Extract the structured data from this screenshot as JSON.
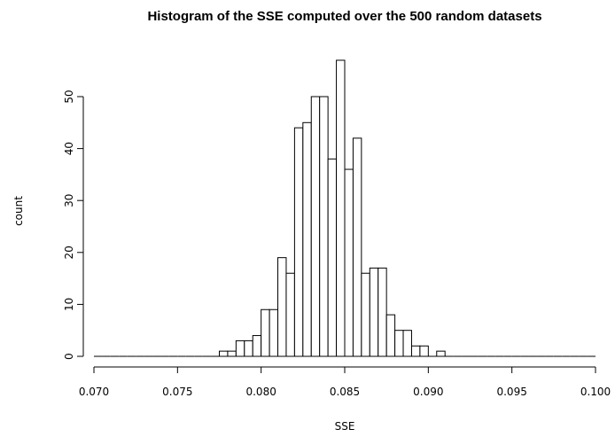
{
  "chart_data": {
    "type": "bar",
    "title": "Histogram of the SSE computed over the 500 random datasets",
    "xlabel": "SSE",
    "ylabel": "count",
    "xlim": [
      0.07,
      0.1
    ],
    "ylim": [
      0,
      57
    ],
    "bin_width": 0.0005,
    "x_ticks": [
      "0.070",
      "0.075",
      "0.080",
      "0.085",
      "0.090",
      "0.095",
      "0.100"
    ],
    "y_ticks": [
      "0",
      "10",
      "20",
      "30",
      "40",
      "50"
    ],
    "bins_start": [
      0.07,
      0.0705,
      0.071,
      0.0715,
      0.072,
      0.0725,
      0.073,
      0.0735,
      0.074,
      0.0745,
      0.075,
      0.0755,
      0.076,
      0.0765,
      0.077,
      0.0775,
      0.078,
      0.0785,
      0.079,
      0.0795,
      0.08,
      0.0805,
      0.081,
      0.0815,
      0.082,
      0.0825,
      0.083,
      0.0835,
      0.084,
      0.0845,
      0.085,
      0.0855,
      0.086,
      0.0865,
      0.087,
      0.0875,
      0.088,
      0.0885,
      0.089,
      0.0895,
      0.09,
      0.0905,
      0.091,
      0.0915,
      0.092,
      0.0925,
      0.093,
      0.0935,
      0.094,
      0.0945,
      0.095,
      0.0955,
      0.096,
      0.0965,
      0.097,
      0.0975,
      0.098,
      0.0985,
      0.099,
      0.0995
    ],
    "counts": [
      0,
      0,
      0,
      0,
      0,
      0,
      0,
      0,
      0,
      0,
      0,
      0,
      0,
      0,
      0,
      1,
      1,
      3,
      3,
      4,
      9,
      9,
      19,
      16,
      44,
      45,
      50,
      50,
      38,
      57,
      36,
      42,
      16,
      17,
      17,
      8,
      5,
      5,
      2,
      2,
      0,
      1,
      0,
      0,
      0,
      0,
      0,
      0,
      0,
      0,
      0,
      0,
      0,
      0,
      0,
      0,
      0,
      0,
      0,
      0
    ]
  }
}
